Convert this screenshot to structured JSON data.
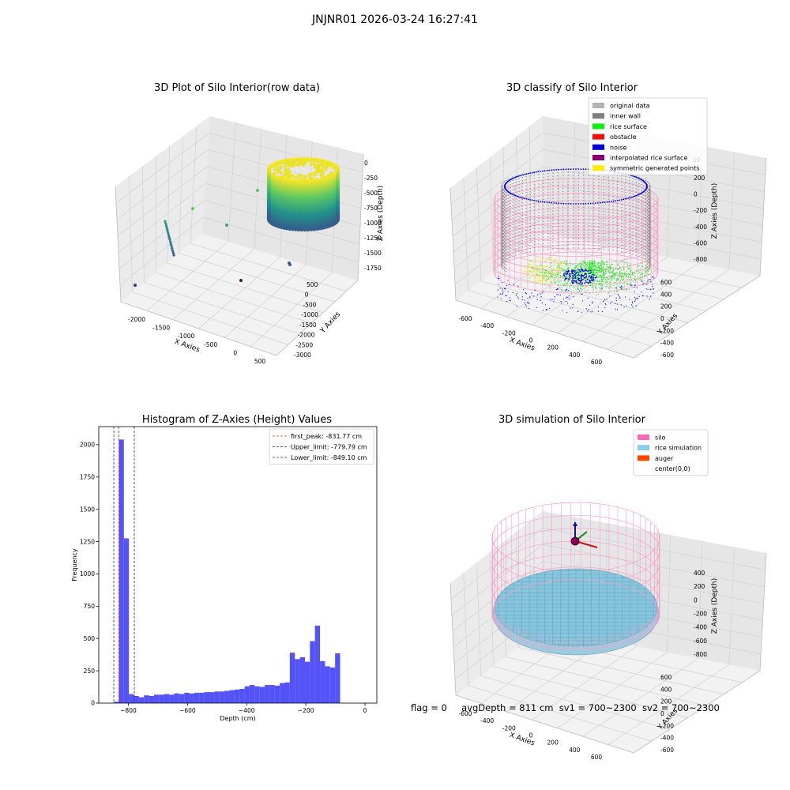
{
  "figure": {
    "suptitle": "JNJNR01 2026-03-24 16:27:41"
  },
  "panel_titles": {
    "raw": "3D Plot of Silo Interior(row data)",
    "classify": "3D classify of Silo Interior",
    "hist": "Histogram of Z-Axies (Height) Values",
    "sim": "3D simulation of Silo Interior"
  },
  "footer": {
    "flag": "flag = 0",
    "avg": "avgDepth = 811 cm",
    "sv1": "sv1 = 700~2300",
    "sv2": "sv2 = 700~2300"
  },
  "colors": {
    "hist_bar": "#5050f7",
    "peak_line": "#d62728",
    "limit_line": "#2222bb",
    "silo_pink": "#f7a0c8",
    "rice_blue": "#87c6df",
    "noise_blue": "#0000dd",
    "rice_green": "#11ee11",
    "inner_wall": "#888888",
    "symmetric": "#ffee00"
  },
  "chart_data": [
    {
      "type": "scatter",
      "id": "raw",
      "title": "3D Plot of Silo Interior(row data)",
      "xlabel": "X Axies",
      "ylabel": "Y Axies",
      "zlabel": "Z Axies (Depth)",
      "x_ticks": [
        "-2000",
        "-1500",
        "-1000",
        "-500",
        "0",
        "500"
      ],
      "y_ticks": [
        "500",
        "0",
        "-500",
        "-1000",
        "-1500",
        "-2000",
        "-2500",
        "-3000"
      ],
      "z_ticks": [
        "0",
        "-250",
        "-500",
        "-750",
        "-1000",
        "-1250",
        "-1500",
        "-1750"
      ],
      "colormap": "viridis by depth"
    },
    {
      "type": "scatter",
      "id": "classify",
      "title": "3D classify of Silo Interior",
      "xlabel": "X Axies",
      "ylabel": "Y Axies",
      "zlabel": "Z Axies (Depth)",
      "x_ticks": [
        "-600",
        "-400",
        "-200",
        "0",
        "200",
        "400",
        "600"
      ],
      "y_ticks": [
        "600",
        "400",
        "200",
        "0",
        "-200",
        "-400",
        "-600"
      ],
      "z_ticks": [
        "200",
        "0",
        "-200",
        "-400",
        "-600",
        "-800"
      ],
      "z_top_partial": "00",
      "legend": [
        {
          "label": "original data",
          "color": "#b3b3b3"
        },
        {
          "label": "inner wall",
          "color": "#7f7f7f"
        },
        {
          "label": "rice surface",
          "color": "#11ee11"
        },
        {
          "label": "obstacle",
          "color": "#ee1111"
        },
        {
          "label": "noise",
          "color": "#0000dd"
        },
        {
          "label": "interpolated rice surface",
          "color": "#880077"
        },
        {
          "label": "symmetric generated points",
          "color": "#ffee00"
        }
      ],
      "legend_loc": "upper right"
    },
    {
      "type": "bar",
      "id": "hist",
      "title": "Histogram of Z-Axies (Height) Values",
      "xlabel": "Depth (cm)",
      "ylabel": "Frequency",
      "xlim": [
        -900,
        40
      ],
      "ylim": [
        0,
        2140
      ],
      "x_ticks": [
        -800,
        -600,
        -400,
        -200,
        0
      ],
      "y_ticks": [
        0,
        250,
        500,
        750,
        1000,
        1250,
        1500,
        1750,
        2000
      ],
      "bin_start": -849.1,
      "bin_width": 17.0,
      "values": [
        10,
        2040,
        1275,
        70,
        55,
        45,
        60,
        55,
        65,
        65,
        70,
        65,
        75,
        70,
        80,
        75,
        80,
        80,
        85,
        85,
        90,
        90,
        95,
        100,
        105,
        110,
        130,
        140,
        130,
        125,
        140,
        140,
        135,
        155,
        160,
        390,
        340,
        355,
        320,
        480,
        600,
        325,
        285,
        275,
        385
      ],
      "vlines": [
        {
          "label": "first_peak: -831.77 cm",
          "x": -831.77,
          "color": "#d62728"
        },
        {
          "label": "Upper_limit: -779.79 cm",
          "x": -779.79,
          "color": "#2222bb"
        },
        {
          "label": "Lower_limit: -849.10 cm",
          "x": -849.1,
          "color": "#2222bb"
        }
      ],
      "legend_loc": "upper right"
    },
    {
      "type": "area",
      "id": "sim",
      "title": "3D simulation of Silo Interior",
      "xlabel": "X Axies",
      "ylabel": "Y Axies",
      "zlabel": "Z Axies (Depth)",
      "x_ticks": [
        "-600",
        "-400",
        "-200",
        "0",
        "200",
        "400",
        "600"
      ],
      "y_ticks": [
        "600",
        "400",
        "200",
        "0",
        "-200",
        "-400",
        "-600"
      ],
      "z_ticks": [
        "400",
        "200",
        "0",
        "-200",
        "-400",
        "-600",
        "-800"
      ],
      "legend": [
        {
          "label": "silo",
          "color": "#ff69b4"
        },
        {
          "label": "rice simulation",
          "color": "#87ceeb"
        },
        {
          "label": "auger",
          "color": "#ff4500"
        },
        {
          "label": "center(0,0)",
          "color": ""
        }
      ],
      "legend_loc": "upper right"
    }
  ]
}
